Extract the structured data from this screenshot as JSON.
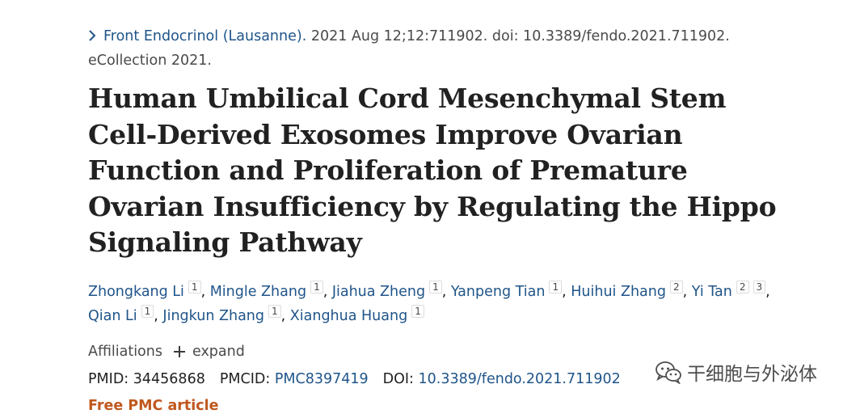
{
  "citation": {
    "journal": "Front Endocrinol (Lausanne).",
    "details": " 2021 Aug 12;12:711902. doi: 10.3389/fendo.2021.711902.",
    "line2": "eCollection 2021."
  },
  "title": "Human Umbilical Cord Mesenchymal Stem Cell-Derived Exosomes Improve Ovarian Function and Proliferation of Premature Ovarian Insufficiency by Regulating the Hippo Signaling Pathway",
  "authors": [
    {
      "name": "Zhongkang Li",
      "affs": [
        "1"
      ]
    },
    {
      "name": "Mingle Zhang",
      "affs": [
        "1"
      ]
    },
    {
      "name": "Jiahua Zheng",
      "affs": [
        "1"
      ]
    },
    {
      "name": "Yanpeng Tian",
      "affs": [
        "1"
      ]
    },
    {
      "name": "Huihui Zhang",
      "affs": [
        "2"
      ]
    },
    {
      "name": "Yi Tan",
      "affs": [
        "2",
        "3"
      ]
    },
    {
      "name": "Qian Li",
      "affs": [
        "1"
      ]
    },
    {
      "name": "Jingkun Zhang",
      "affs": [
        "1"
      ]
    },
    {
      "name": "Xianghua Huang",
      "affs": [
        "1"
      ]
    }
  ],
  "affiliations": {
    "label": "Affiliations",
    "expand_label": "expand"
  },
  "identifiers": {
    "pmid_label": "PMID:",
    "pmid": "34456868",
    "pmcid_label": "PMCID:",
    "pmcid": "PMC8397419",
    "doi_label": "DOI:",
    "doi": "10.3389/fendo.2021.711902"
  },
  "free_article": "Free PMC article",
  "watermark": {
    "icon": "wechat-icon",
    "text": "干细胞与外泌体"
  },
  "colors": {
    "link": "#20558a",
    "free_article": "#c0581e",
    "text": "#212121"
  }
}
